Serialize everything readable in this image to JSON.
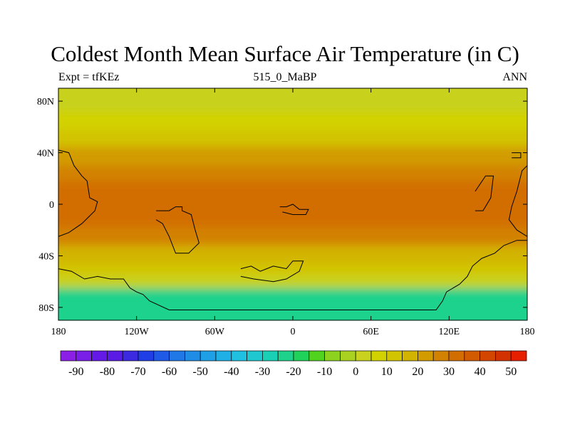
{
  "chart_data": {
    "type": "heatmap",
    "title": "Coldest Month Mean Surface Air Temperature (in C)",
    "subtitle_left": "Expt = tfKEz",
    "subtitle_center": "515_0_MaBP",
    "subtitle_right": "ANN",
    "x_ticks": [
      "180",
      "120W",
      "60W",
      "0",
      "60E",
      "120E",
      "180"
    ],
    "y_ticks": [
      "80N",
      "40N",
      "0",
      "40S",
      "80S"
    ],
    "xlim": [
      -180,
      180
    ],
    "ylim": [
      -90,
      90
    ],
    "colorbar": {
      "labels": [
        "-90",
        "-80",
        "-70",
        "-60",
        "-50",
        "-40",
        "-30",
        "-20",
        "-10",
        "0",
        "10",
        "20",
        "30",
        "40",
        "50"
      ],
      "colors": [
        "#8c1fe6",
        "#7a1fe8",
        "#6419e6",
        "#5a1be4",
        "#3c2ae0",
        "#1f3ee6",
        "#1f5ae6",
        "#1f78e6",
        "#1f8ce6",
        "#1fa0e6",
        "#1fb0e6",
        "#1fc0e0",
        "#1fc8d0",
        "#19cfb4",
        "#1fd28c",
        "#1fd25a",
        "#50d21f",
        "#8cd21f",
        "#a8d21f",
        "#c8d21f",
        "#d2d200",
        "#d2c400",
        "#d2b400",
        "#d29c00",
        "#d28200",
        "#d26e00",
        "#d25a00",
        "#d24600",
        "#d23200",
        "#e61f00"
      ]
    },
    "temperature_bands": [
      {
        "lat_top": 90,
        "lat_bottom": 72,
        "value": 2
      },
      {
        "lat_top": 72,
        "lat_bottom": 58,
        "value": 8
      },
      {
        "lat_top": 58,
        "lat_bottom": 45,
        "value": 14
      },
      {
        "lat_top": 45,
        "lat_bottom": 30,
        "value": 20
      },
      {
        "lat_top": 30,
        "lat_bottom": 18,
        "value": 26
      },
      {
        "lat_top": 18,
        "lat_bottom": -18,
        "value": 32
      },
      {
        "lat_top": -18,
        "lat_bottom": -32,
        "value": 26
      },
      {
        "lat_top": -32,
        "lat_bottom": -45,
        "value": 18
      },
      {
        "lat_top": -45,
        "lat_bottom": -55,
        "value": 12
      },
      {
        "lat_top": -55,
        "lat_bottom": -65,
        "value": 2
      },
      {
        "lat_top": -65,
        "lat_bottom": -90,
        "value": -22
      }
    ],
    "continents": [
      [
        [
          -180,
          42
        ],
        [
          -172,
          40
        ],
        [
          -168,
          30
        ],
        [
          -162,
          22
        ],
        [
          -158,
          18
        ],
        [
          -156,
          5
        ],
        [
          -150,
          2
        ],
        [
          -152,
          -5
        ],
        [
          -162,
          -15
        ],
        [
          -172,
          -22
        ],
        [
          -180,
          -25
        ]
      ],
      [
        [
          180,
          -25
        ],
        [
          172,
          -20
        ],
        [
          166,
          -12
        ],
        [
          168,
          -2
        ],
        [
          172,
          10
        ],
        [
          176,
          26
        ],
        [
          180,
          30
        ]
      ],
      [
        [
          -105,
          -5
        ],
        [
          -95,
          -5
        ],
        [
          -90,
          -2
        ],
        [
          -85,
          -2
        ],
        [
          -85,
          -5
        ],
        [
          -78,
          -8
        ],
        [
          -75,
          -20
        ],
        [
          -72,
          -30
        ],
        [
          -80,
          -38
        ],
        [
          -90,
          -38
        ],
        [
          -95,
          -25
        ],
        [
          -100,
          -15
        ],
        [
          -105,
          -12
        ]
      ],
      [
        [
          -40,
          -50
        ],
        [
          -32,
          -48
        ],
        [
          -25,
          -52
        ],
        [
          -15,
          -48
        ],
        [
          -5,
          -50
        ],
        [
          0,
          -44
        ],
        [
          8,
          -44
        ],
        [
          5,
          -52
        ],
        [
          -5,
          -58
        ],
        [
          -15,
          -60
        ],
        [
          -30,
          -58
        ],
        [
          -40,
          -56
        ]
      ],
      [
        [
          -10,
          -2
        ],
        [
          -5,
          -2
        ],
        [
          0,
          0
        ],
        [
          5,
          -4
        ],
        [
          12,
          -4
        ],
        [
          10,
          -8
        ],
        [
          0,
          -8
        ],
        [
          -8,
          -6
        ]
      ],
      [
        [
          -180,
          -50
        ],
        [
          -170,
          -52
        ],
        [
          -160,
          -58
        ],
        [
          -150,
          -56
        ],
        [
          -140,
          -58
        ],
        [
          -130,
          -58
        ],
        [
          -125,
          -65
        ],
        [
          -120,
          -68
        ],
        [
          -115,
          -70
        ],
        [
          -110,
          -75
        ],
        [
          -95,
          -82
        ],
        [
          -60,
          -82
        ],
        [
          0,
          -82
        ],
        [
          60,
          -82
        ],
        [
          110,
          -82
        ],
        [
          115,
          -75
        ],
        [
          118,
          -68
        ],
        [
          128,
          -62
        ],
        [
          134,
          -56
        ],
        [
          138,
          -48
        ],
        [
          145,
          -42
        ],
        [
          155,
          -38
        ],
        [
          162,
          -32
        ],
        [
          172,
          -28
        ],
        [
          180,
          -28
        ]
      ],
      [
        [
          140,
          10
        ],
        [
          148,
          22
        ],
        [
          154,
          22
        ],
        [
          152,
          5
        ],
        [
          146,
          -5
        ],
        [
          140,
          -5
        ]
      ],
      [
        [
          168,
          40
        ],
        [
          175,
          40
        ],
        [
          175,
          36
        ],
        [
          168,
          36
        ]
      ]
    ]
  }
}
